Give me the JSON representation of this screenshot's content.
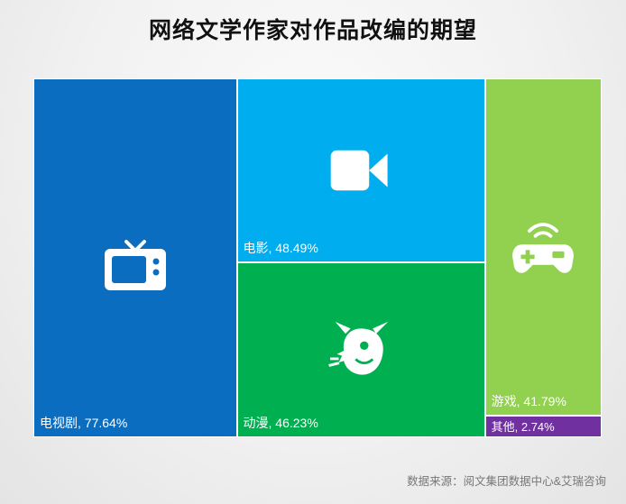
{
  "title": "网络文学作家对作品改编的期望",
  "source": "数据来源：阅文集团数据中心&艾瑞咨询",
  "chart_data": {
    "type": "treemap",
    "title": "网络文学作家对作品改编的期望",
    "unit": "%",
    "items": [
      {
        "name": "电视剧",
        "value": 77.64,
        "label": "电视剧, 77.64%",
        "color": "#0a6dbf",
        "icon": "tv-icon"
      },
      {
        "name": "电影",
        "value": 48.49,
        "label": "电影, 48.49%",
        "color": "#00adef",
        "icon": "video-camera-icon"
      },
      {
        "name": "动漫",
        "value": 46.23,
        "label": "动漫, 46.23%",
        "color": "#00b050",
        "icon": "devil-mascot-icon"
      },
      {
        "name": "游戏",
        "value": 41.79,
        "label": "游戏, 41.79%",
        "color": "#92d050",
        "icon": "gamepad-icon"
      },
      {
        "name": "其他",
        "value": 2.74,
        "label": "其他, 2.74%",
        "color": "#7030a0",
        "icon": ""
      }
    ]
  }
}
